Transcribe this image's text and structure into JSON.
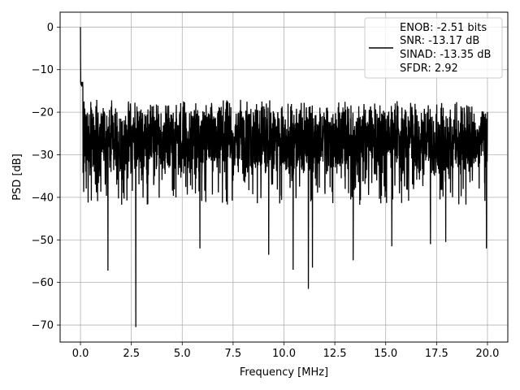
{
  "chart_data": {
    "type": "line",
    "xlabel": "Frequency [MHz]",
    "ylabel": "PSD [dB]",
    "xlim": [
      -1.0,
      21.0
    ],
    "ylim": [
      -74.0,
      3.5
    ],
    "x_ticks": [
      0.0,
      2.5,
      5.0,
      7.5,
      10.0,
      12.5,
      15.0,
      17.5,
      20.0
    ],
    "x_tick_labels": [
      "0.0",
      "2.5",
      "5.0",
      "7.5",
      "10.0",
      "12.5",
      "15.0",
      "17.5",
      "20.0"
    ],
    "y_ticks": [
      0,
      -10,
      -20,
      -30,
      -40,
      -50,
      -60,
      -70
    ],
    "y_tick_labels": [
      "0",
      "−10",
      "−20",
      "−30",
      "−40",
      "−50",
      "−60",
      "−70"
    ],
    "grid": true,
    "legend_position": "top-right",
    "legend_entries": [
      "ENOB: -2.51 bits",
      "SNR: -13.17 dB",
      "SINAD: -13.35 dB",
      "SFDR: 2.92"
    ],
    "series": [
      {
        "color": "#000000",
        "x_start": 0.0,
        "x_end": 20.0,
        "peak": {
          "x": 0.0,
          "y": 0.0
        },
        "noise_floor_mean": -27.0,
        "upper_envelope": -20.0,
        "lower_envelope": -40.0,
        "deep_nulls": [
          {
            "x": 1.35,
            "y": -57.2
          },
          {
            "x": 2.72,
            "y": -70.5
          },
          {
            "x": 5.87,
            "y": -52.0
          },
          {
            "x": 9.25,
            "y": -53.5
          },
          {
            "x": 10.45,
            "y": -57.0
          },
          {
            "x": 11.2,
            "y": -61.5
          },
          {
            "x": 11.4,
            "y": -56.5
          },
          {
            "x": 13.4,
            "y": -54.8
          },
          {
            "x": 15.3,
            "y": -51.5
          },
          {
            "x": 17.2,
            "y": -51.0
          },
          {
            "x": 17.95,
            "y": -50.5
          },
          {
            "x": 19.95,
            "y": -52.0
          }
        ]
      }
    ]
  }
}
